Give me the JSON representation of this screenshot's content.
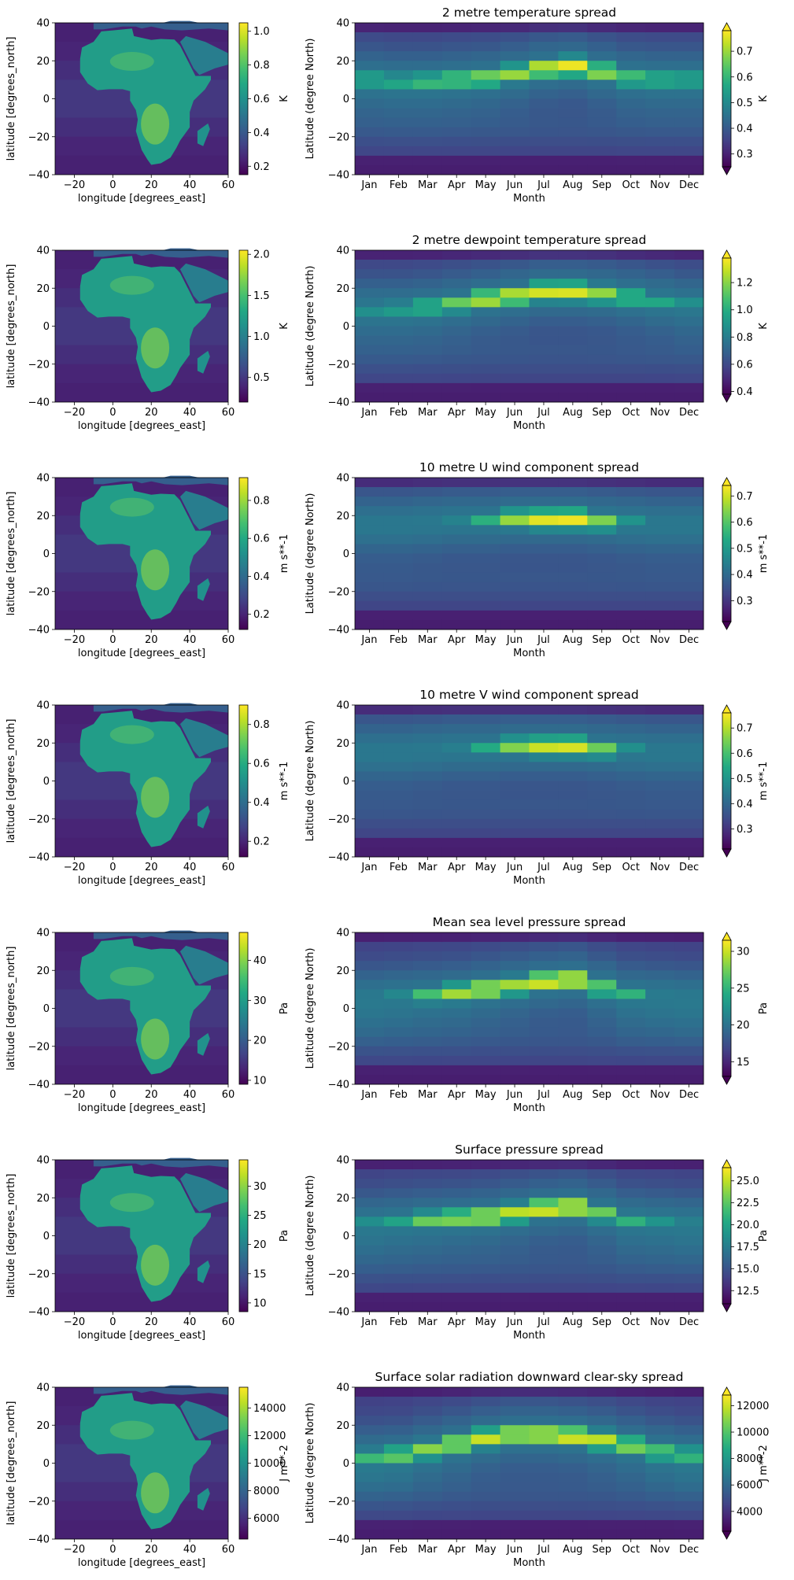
{
  "figure": {
    "map_x": {
      "label": "longitude [degrees_east]",
      "ticks": [
        "−20",
        "0",
        "20",
        "40",
        "60"
      ]
    },
    "map_y": {
      "label": "latitude [degrees_north]",
      "ticks": [
        "40",
        "20",
        "0",
        "−20",
        "−40"
      ]
    },
    "hov_x": {
      "label": "Month",
      "ticks": [
        "Jan",
        "Feb",
        "Mar",
        "Apr",
        "May",
        "Jun",
        "Jul",
        "Aug",
        "Sep",
        "Oct",
        "Nov",
        "Dec"
      ]
    },
    "hov_y": {
      "label": "Latitude (degree North)",
      "ticks": [
        "40",
        "20",
        "0",
        "−20",
        "−40"
      ]
    }
  },
  "colors": {
    "viridis": [
      "#440154",
      "#482475",
      "#414487",
      "#355f8d",
      "#2a788e",
      "#21918c",
      "#22a884",
      "#44bf70",
      "#7ad151",
      "#bddf26",
      "#fde725"
    ]
  },
  "chart_data": [
    {
      "type": "heatmap",
      "title": "2 metre temperature spread",
      "map": {
        "units": "K",
        "colorbar_ticks": [
          "0.2",
          "0.4",
          "0.6",
          "0.8",
          "1.0"
        ],
        "vmin": 0.15,
        "vmax": 1.05
      },
      "hovmoller": {
        "units": "K",
        "colorbar_ticks": [
          "0.3",
          "0.4",
          "0.5",
          "0.6",
          "0.7"
        ],
        "vmin": 0.25,
        "vmax": 0.78,
        "extend": "both",
        "xlim": [
          1,
          12
        ],
        "ylim": [
          -40,
          40
        ],
        "peak_lat_by_month": [
          10,
          9,
          9,
          10,
          11,
          13,
          16,
          17,
          14,
          11,
          10,
          10
        ],
        "peak_value_by_month": [
          0.58,
          0.58,
          0.62,
          0.65,
          0.68,
          0.7,
          0.74,
          0.77,
          0.7,
          0.63,
          0.6,
          0.58
        ]
      }
    },
    {
      "type": "heatmap",
      "title": "2 metre dewpoint temperature spread",
      "map": {
        "units": "K",
        "colorbar_ticks": [
          "0.5",
          "1.0",
          "1.5",
          "2.0"
        ],
        "vmin": 0.2,
        "vmax": 2.05
      },
      "hovmoller": {
        "units": "K",
        "colorbar_ticks": [
          "0.4",
          "0.6",
          "0.8",
          "1.0",
          "1.2"
        ],
        "vmin": 0.38,
        "vmax": 1.38,
        "extend": "both",
        "xlim": [
          1,
          12
        ],
        "ylim": [
          -40,
          40
        ],
        "peak_lat_by_month": [
          9,
          9,
          10,
          12,
          14,
          16,
          18,
          18,
          17,
          15,
          13,
          11
        ],
        "peak_value_by_month": [
          0.9,
          0.95,
          1.05,
          1.15,
          1.28,
          1.3,
          1.32,
          1.33,
          1.22,
          1.08,
          0.98,
          0.9
        ]
      }
    },
    {
      "type": "heatmap",
      "title": "10 metre U wind component spread",
      "map": {
        "units": "m s**-1",
        "colorbar_ticks": [
          "0.2",
          "0.4",
          "0.6",
          "0.8"
        ],
        "vmin": 0.12,
        "vmax": 0.92
      },
      "hovmoller": {
        "units": "m s**-1",
        "colorbar_ticks": [
          "0.3",
          "0.4",
          "0.5",
          "0.6",
          "0.7"
        ],
        "vmin": 0.22,
        "vmax": 0.74,
        "extend": "both",
        "xlim": [
          1,
          12
        ],
        "ylim": [
          -40,
          40
        ],
        "peak_lat_by_month": [
          15,
          15,
          16,
          17,
          17,
          18,
          18,
          18,
          17,
          16,
          15,
          15
        ],
        "peak_value_by_month": [
          0.3,
          0.32,
          0.38,
          0.45,
          0.55,
          0.66,
          0.72,
          0.73,
          0.64,
          0.5,
          0.38,
          0.3
        ]
      }
    },
    {
      "type": "heatmap",
      "title": "10 metre V wind component spread",
      "map": {
        "units": "m s**-1",
        "colorbar_ticks": [
          "0.2",
          "0.4",
          "0.6",
          "0.8"
        ],
        "vmin": 0.12,
        "vmax": 0.9
      },
      "hovmoller": {
        "units": "m s**-1",
        "colorbar_ticks": [
          "0.3",
          "0.4",
          "0.5",
          "0.6",
          "0.7"
        ],
        "vmin": 0.22,
        "vmax": 0.76,
        "extend": "both",
        "xlim": [
          1,
          12
        ],
        "ylim": [
          -40,
          40
        ],
        "peak_lat_by_month": [
          15,
          15,
          16,
          17,
          17,
          18,
          18,
          18,
          17,
          16,
          15,
          15
        ],
        "peak_value_by_month": [
          0.3,
          0.32,
          0.38,
          0.45,
          0.55,
          0.66,
          0.72,
          0.73,
          0.64,
          0.5,
          0.38,
          0.3
        ]
      }
    },
    {
      "type": "heatmap",
      "title": "Mean sea level pressure spread",
      "map": {
        "units": "Pa",
        "colorbar_ticks": [
          "10",
          "20",
          "30",
          "40"
        ],
        "vmin": 9,
        "vmax": 47
      },
      "hovmoller": {
        "units": "Pa",
        "colorbar_ticks": [
          "15",
          "20",
          "25",
          "30"
        ],
        "vmin": 13,
        "vmax": 31.5,
        "extend": "both",
        "xlim": [
          1,
          12
        ],
        "ylim": [
          -40,
          40
        ],
        "peak_lat_by_month": [
          5,
          6,
          7,
          8,
          10,
          12,
          14,
          15,
          11,
          7,
          6,
          5
        ],
        "peak_value_by_month": [
          21,
          22,
          26,
          29,
          30,
          29,
          31,
          31,
          27,
          25,
          21,
          20
        ]
      }
    },
    {
      "type": "heatmap",
      "title": "Surface pressure spread",
      "map": {
        "units": "Pa",
        "colorbar_ticks": [
          "10",
          "15",
          "20",
          "25",
          "30"
        ],
        "vmin": 8.5,
        "vmax": 34.5
      },
      "hovmoller": {
        "units": "Pa",
        "colorbar_ticks": [
          "12.5",
          "15.0",
          "17.5",
          "20.0",
          "22.5",
          "25.0"
        ],
        "vmin": 11,
        "vmax": 26.5,
        "extend": "both",
        "xlim": [
          1,
          12
        ],
        "ylim": [
          -40,
          40
        ],
        "peak_lat_by_month": [
          6,
          7,
          8,
          9,
          10,
          12,
          14,
          15,
          12,
          8,
          7,
          6
        ],
        "peak_value_by_month": [
          19,
          20,
          23,
          24,
          25,
          25,
          26,
          26,
          23,
          21,
          19,
          18
        ]
      }
    },
    {
      "type": "heatmap",
      "title": "Surface solar radiation downward clear-sky spread",
      "map": {
        "units": "J m**-2",
        "colorbar_ticks": [
          "6000",
          "8000",
          "10000",
          "12000",
          "14000"
        ],
        "vmin": 4500,
        "vmax": 15500
      },
      "hovmoller": {
        "units": "J m**-2",
        "colorbar_ticks": [
          "4000",
          "6000",
          "8000",
          "10000",
          "12000"
        ],
        "vmin": 2500,
        "vmax": 12800,
        "extend": "both",
        "xlim": [
          1,
          12
        ],
        "ylim": [
          -40,
          40
        ],
        "peak_lat_by_month": [
          3,
          4,
          7,
          10,
          13,
          15,
          15,
          14,
          12,
          9,
          6,
          4
        ],
        "peak_value_by_month": [
          9500,
          10500,
          11000,
          11500,
          12000,
          12000,
          12300,
          12500,
          11800,
          11000,
          10000,
          9500
        ]
      }
    }
  ]
}
